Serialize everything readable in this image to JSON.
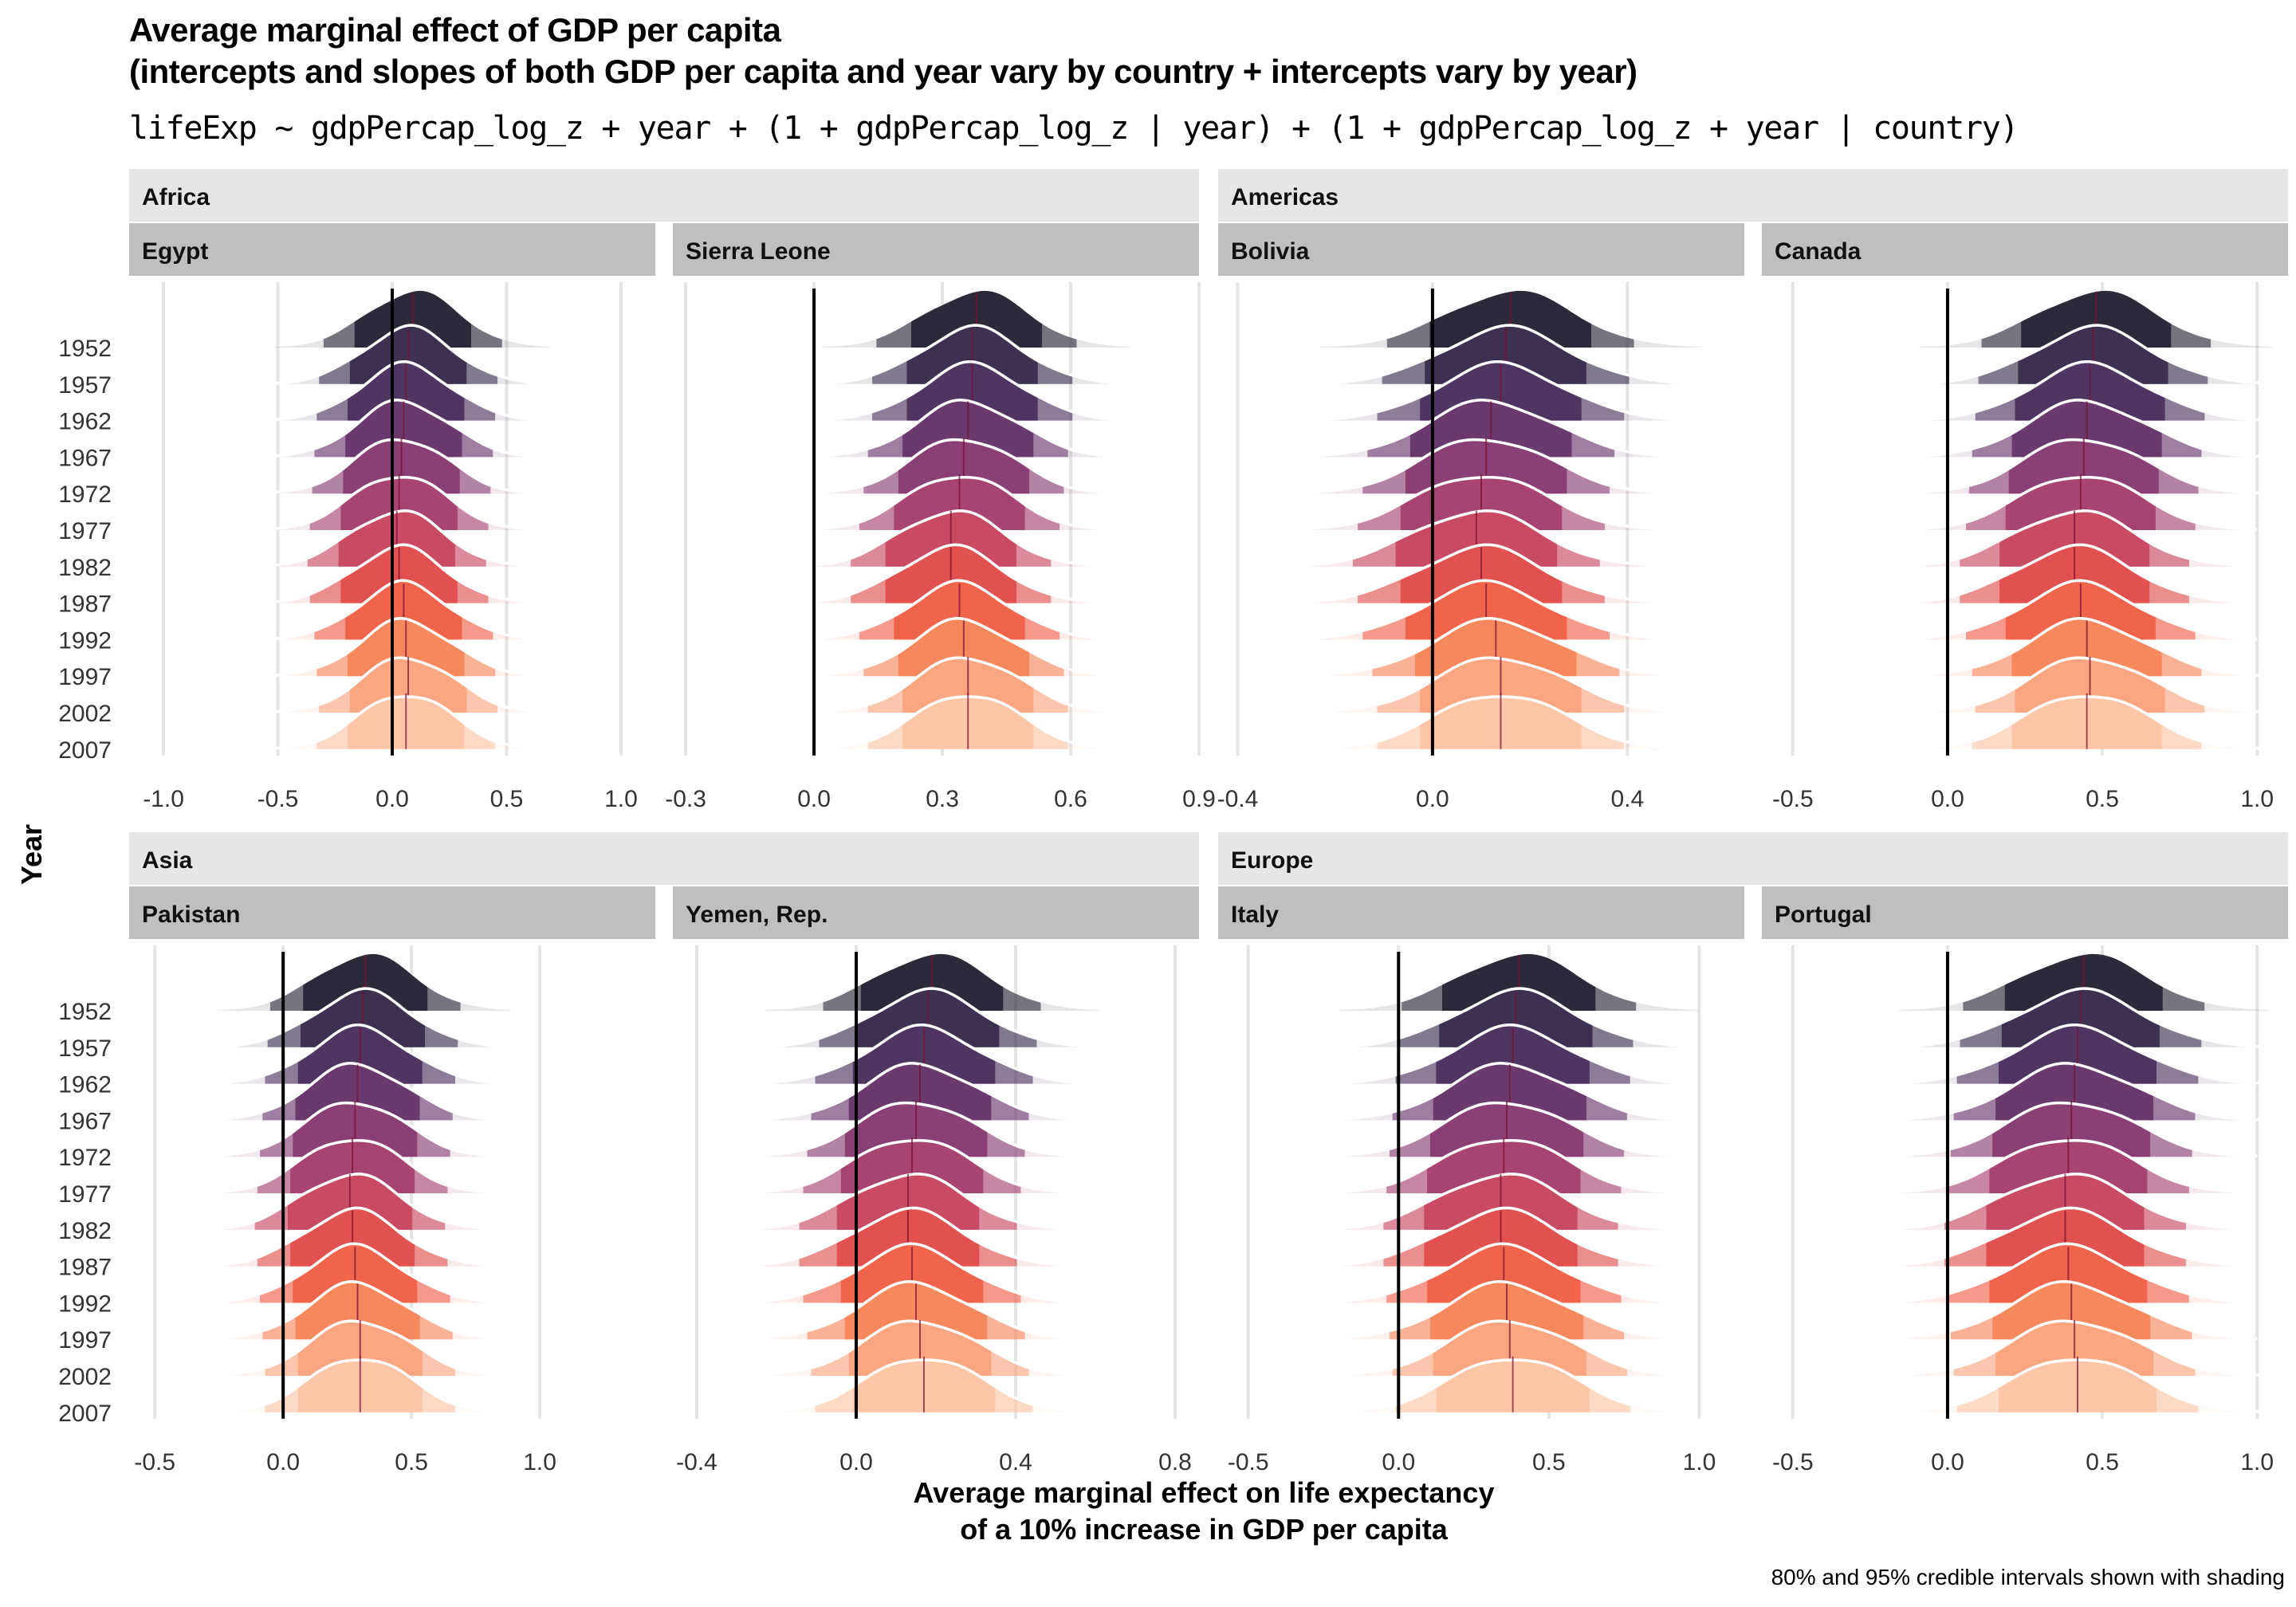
{
  "title_line1": "Average marginal effect of GDP per capita",
  "title_line2": "(intercepts and slopes of both GDP per capita and year vary by country + intercepts vary by year)",
  "subtitle": "lifeExp ~ gdpPercap_log_z + year + (1 + gdpPercap_log_z | year) + (1 + gdpPercap_log_z + year | country)",
  "caption": "80% and 95% credible intervals shown with shading",
  "chart_data": {
    "type": "ridgeline",
    "xlabel": "Average marginal effect on life expectancy\nof a 10% increase in GDP per capita",
    "ylabel": "Year",
    "years": [
      "1952",
      "1957",
      "1962",
      "1967",
      "1972",
      "1977",
      "1982",
      "1987",
      "1992",
      "1997",
      "2002",
      "2007"
    ],
    "reference_line_x": 0,
    "colors": [
      "#2b2a3a",
      "#3d3050",
      "#4f3561",
      "#6a3a6e",
      "#8a4074",
      "#a84471",
      "#c94a63",
      "#e0514f",
      "#f0644b",
      "#f6885e",
      "#f9a681",
      "#fcc6a7"
    ],
    "groups": [
      {
        "continent": "Africa",
        "panels": [
          {
            "country": "Egypt",
            "xlim": [
              -1.15,
              1.15
            ],
            "ticks": [
              "-1.0",
              "-0.5",
              "0.0",
              "0.5",
              "1.0"
            ],
            "tick_values": [
              -1.0,
              -0.5,
              0.0,
              0.5,
              1.0
            ],
            "medians": [
              0.09,
              0.07,
              0.06,
              0.05,
              0.04,
              0.03,
              0.02,
              0.03,
              0.05,
              0.06,
              0.07,
              0.06
            ],
            "sd": 0.2
          },
          {
            "country": "Sierra Leone",
            "xlim": [
              -0.33,
              0.9
            ],
            "ticks": [
              "-0.3",
              "0.0",
              "0.3",
              "0.6",
              "0.9"
            ],
            "tick_values": [
              -0.3,
              0.0,
              0.3,
              0.6,
              0.9
            ],
            "medians": [
              0.38,
              0.37,
              0.37,
              0.36,
              0.35,
              0.34,
              0.32,
              0.32,
              0.34,
              0.35,
              0.36,
              0.36
            ],
            "sd": 0.12
          }
        ]
      },
      {
        "continent": "Americas",
        "panels": [
          {
            "country": "Bolivia",
            "xlim": [
              -0.44,
              0.64
            ],
            "ticks": [
              "-0.4",
              "0.0",
              "0.4"
            ],
            "tick_values": [
              -0.4,
              0.0,
              0.4
            ],
            "medians": [
              0.16,
              0.15,
              0.14,
              0.12,
              0.11,
              0.1,
              0.09,
              0.1,
              0.11,
              0.13,
              0.14,
              0.14
            ],
            "sd": 0.13
          },
          {
            "country": "Canada",
            "xlim": [
              -0.6,
              1.1
            ],
            "ticks": [
              "-0.5",
              "0.0",
              "0.5",
              "1.0"
            ],
            "tick_values": [
              -0.5,
              0.0,
              0.5,
              1.0
            ],
            "medians": [
              0.48,
              0.47,
              0.46,
              0.45,
              0.44,
              0.43,
              0.41,
              0.41,
              0.43,
              0.45,
              0.46,
              0.45
            ],
            "sd": 0.19
          }
        ]
      },
      {
        "continent": "Asia",
        "panels": [
          {
            "country": "Pakistan",
            "xlim": [
              -0.6,
              1.45
            ],
            "ticks": [
              "-0.5",
              "0.0",
              "0.5",
              "1.0"
            ],
            "tick_values": [
              -0.5,
              0.0,
              0.5,
              1.0
            ],
            "medians": [
              0.32,
              0.31,
              0.3,
              0.29,
              0.28,
              0.27,
              0.26,
              0.27,
              0.28,
              0.29,
              0.3,
              0.3
            ],
            "sd": 0.19
          },
          {
            "country": "Yemen, Rep.",
            "xlim": [
              -0.46,
              0.86
            ],
            "ticks": [
              "-0.4",
              "0.0",
              "0.4",
              "0.8"
            ],
            "tick_values": [
              -0.4,
              0.0,
              0.4,
              0.8
            ],
            "medians": [
              0.19,
              0.18,
              0.17,
              0.16,
              0.15,
              0.14,
              0.13,
              0.13,
              0.14,
              0.15,
              0.16,
              0.17
            ],
            "sd": 0.14
          }
        ]
      },
      {
        "continent": "Europe",
        "panels": [
          {
            "country": "Italy",
            "xlim": [
              -0.6,
              1.15
            ],
            "ticks": [
              "-0.5",
              "0.0",
              "0.5",
              "1.0"
            ],
            "tick_values": [
              -0.5,
              0.0,
              0.5,
              1.0
            ],
            "medians": [
              0.4,
              0.39,
              0.38,
              0.37,
              0.36,
              0.35,
              0.34,
              0.34,
              0.35,
              0.36,
              0.37,
              0.38
            ],
            "sd": 0.2
          },
          {
            "country": "Portugal",
            "xlim": [
              -0.6,
              1.1
            ],
            "ticks": [
              "-0.5",
              "0.0",
              "0.5",
              "1.0"
            ],
            "tick_values": [
              -0.5,
              0.0,
              0.5,
              1.0
            ],
            "medians": [
              0.44,
              0.43,
              0.42,
              0.41,
              0.4,
              0.39,
              0.38,
              0.38,
              0.39,
              0.4,
              0.41,
              0.42
            ],
            "sd": 0.2
          }
        ]
      }
    ]
  }
}
